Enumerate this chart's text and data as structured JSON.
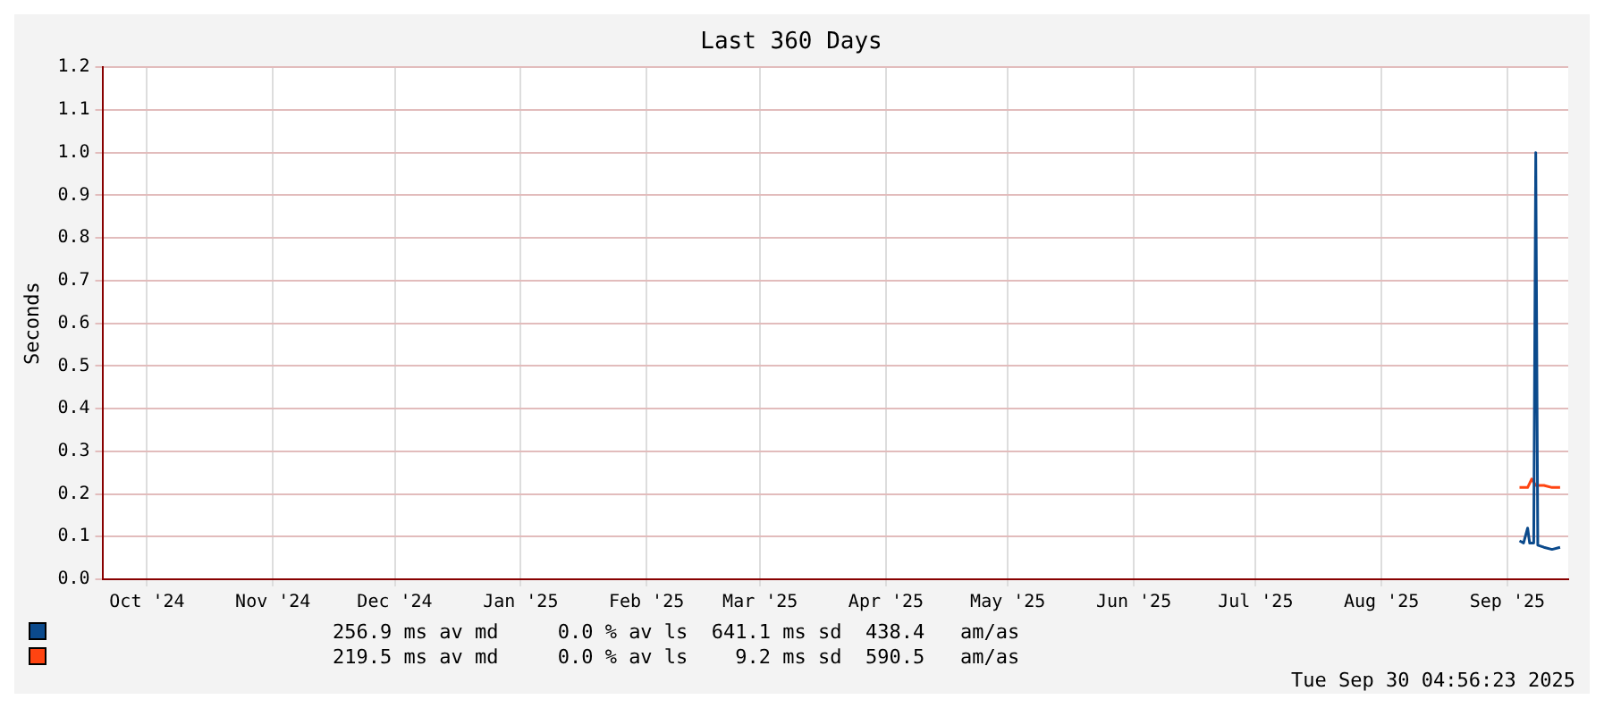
{
  "chart_data": {
    "type": "line",
    "title": "Last 360 Days",
    "ylabel": "Seconds",
    "xlim": [
      "2024-10-04",
      "2025-09-30"
    ],
    "xticks": [
      {
        "value": "2024-10-15",
        "label": "Oct '24"
      },
      {
        "value": "2024-11-15",
        "label": "Nov '24"
      },
      {
        "value": "2024-12-15",
        "label": "Dec '24"
      },
      {
        "value": "2025-01-15",
        "label": "Jan '25"
      },
      {
        "value": "2025-02-15",
        "label": "Feb '25"
      },
      {
        "value": "2025-03-15",
        "label": "Mar '25"
      },
      {
        "value": "2025-04-15",
        "label": "Apr '25"
      },
      {
        "value": "2025-05-15",
        "label": "May '25"
      },
      {
        "value": "2025-06-15",
        "label": "Jun '25"
      },
      {
        "value": "2025-07-15",
        "label": "Jul '25"
      },
      {
        "value": "2025-08-15",
        "label": "Aug '25"
      },
      {
        "value": "2025-09-15",
        "label": "Sep '25"
      }
    ],
    "ylim": [
      0,
      1.2
    ],
    "yticks": [
      {
        "value": 0,
        "label": "0.0"
      },
      0.1,
      0.2,
      0.3,
      0.4,
      0.5,
      0.6,
      0.7,
      0.8,
      0.9,
      {
        "value": 1,
        "label": "1.0"
      },
      1.1,
      1.2
    ],
    "grid": true,
    "legend": false,
    "marker": "none",
    "line_style": "solid",
    "series": [
      {
        "color": "#0b4a8c",
        "x": [
          "2025-09-18",
          "2025-09-19",
          "2025-09-20",
          "2025-09-20T12:00",
          "2025-09-21T12:00",
          "2025-09-22",
          "2025-09-22T12:00",
          "2025-09-24",
          "2025-09-26",
          "2025-09-28"
        ],
        "values": [
          0.09,
          0.085,
          0.12,
          0.085,
          0.085,
          1.0,
          0.08,
          0.075,
          0.07,
          0.075
        ]
      },
      {
        "color": "#ff4411",
        "x": [
          "2025-09-18",
          "2025-09-20",
          "2025-09-21",
          "2025-09-22",
          "2025-09-24",
          "2025-09-26",
          "2025-09-28"
        ],
        "values": [
          0.215,
          0.215,
          0.235,
          0.22,
          0.22,
          0.215,
          0.215
        ]
      }
    ],
    "annotations": [
      "256.9 ms av md     0.0 % av ls  641.1 ms sd  438.4   am/as",
      "219.5 ms av md     0.0 % av ls    9.2 ms sd  590.5   am/as",
      "Tue Sep 30 04:56:23 2025"
    ]
  }
}
